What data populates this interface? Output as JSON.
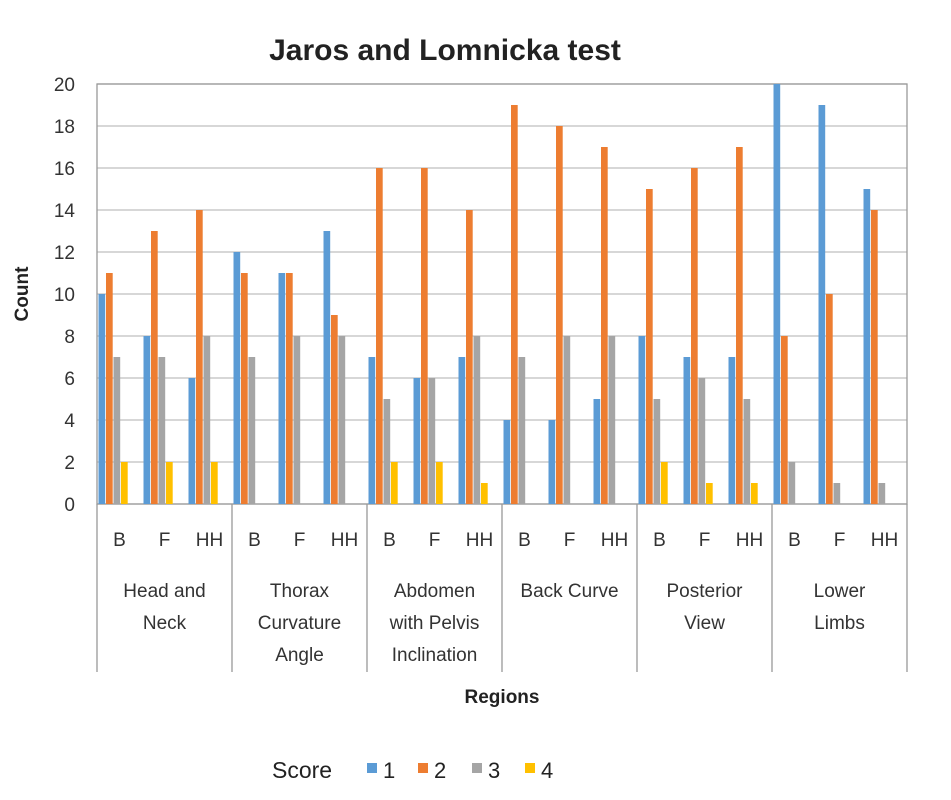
{
  "chart_data": {
    "type": "bar",
    "title": "Jaros and Lomnicka test",
    "xlabel": "Regions",
    "ylabel": "Count",
    "ylim": [
      0,
      20
    ],
    "yticks": [
      0,
      2,
      4,
      6,
      8,
      10,
      12,
      14,
      16,
      18,
      20
    ],
    "grid": true,
    "legend_position": "bottom",
    "legend_title": "Score",
    "groups": [
      {
        "label_lines": [
          "Head and",
          "Neck"
        ],
        "subcategories": [
          "B",
          "F",
          "HH"
        ]
      },
      {
        "label_lines": [
          "Thorax",
          "Curvature",
          "Angle"
        ],
        "subcategories": [
          "B",
          "F",
          "HH"
        ]
      },
      {
        "label_lines": [
          "Abdomen",
          "with Pelvis",
          "Inclination"
        ],
        "subcategories": [
          "B",
          "F",
          "HH"
        ]
      },
      {
        "label_lines": [
          "Back Curve"
        ],
        "subcategories": [
          "B",
          "F",
          "HH"
        ]
      },
      {
        "label_lines": [
          "Posterior",
          "View"
        ],
        "subcategories": [
          "B",
          "F",
          "HH"
        ]
      },
      {
        "label_lines": [
          "Lower",
          "Limbs"
        ],
        "subcategories": [
          "B",
          "F",
          "HH"
        ]
      }
    ],
    "series": [
      {
        "name": "1",
        "color": "#5B9BD5",
        "values": [
          10,
          8,
          6,
          12,
          11,
          13,
          7,
          6,
          7,
          4,
          4,
          5,
          8,
          7,
          7,
          20,
          19,
          15
        ]
      },
      {
        "name": "2",
        "color": "#ED7D31",
        "values": [
          11,
          13,
          14,
          11,
          11,
          9,
          16,
          16,
          14,
          19,
          18,
          17,
          15,
          16,
          17,
          8,
          10,
          14
        ]
      },
      {
        "name": "3",
        "color": "#A5A5A5",
        "values": [
          7,
          7,
          8,
          7,
          8,
          8,
          5,
          6,
          8,
          7,
          8,
          8,
          5,
          6,
          5,
          2,
          1,
          1
        ]
      },
      {
        "name": "4",
        "color": "#FFC000",
        "values": [
          2,
          2,
          2,
          0,
          0,
          0,
          2,
          2,
          1,
          0,
          0,
          0,
          2,
          1,
          1,
          0,
          0,
          0
        ]
      }
    ]
  }
}
